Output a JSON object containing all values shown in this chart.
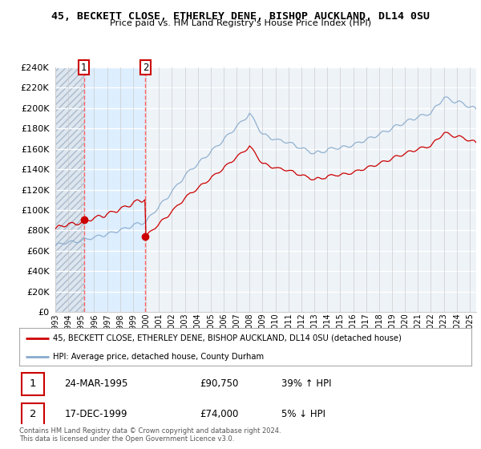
{
  "title": "45, BECKETT CLOSE, ETHERLEY DENE, BISHOP AUCKLAND, DL14 0SU",
  "subtitle": "Price paid vs. HM Land Registry's House Price Index (HPI)",
  "legend_line1": "45, BECKETT CLOSE, ETHERLEY DENE, BISHOP AUCKLAND, DL14 0SU (detached house)",
  "legend_line2": "HPI: Average price, detached house, County Durham",
  "transactions": [
    {
      "label": "1",
      "date": "24-MAR-1995",
      "price": 90750,
      "price_str": "£90,750",
      "pct": "39%",
      "dir": "↑",
      "year": 1995.21
    },
    {
      "label": "2",
      "date": "17-DEC-1999",
      "price": 74000,
      "price_str": "£74,000",
      "pct": "5%",
      "dir": "↓",
      "year": 1999.96
    }
  ],
  "footnote1": "Contains HM Land Registry data © Crown copyright and database right 2024.",
  "footnote2": "This data is licensed under the Open Government Licence v3.0.",
  "ylim": [
    0,
    240000
  ],
  "yticks": [
    0,
    20000,
    40000,
    60000,
    80000,
    100000,
    120000,
    140000,
    160000,
    180000,
    200000,
    220000,
    240000
  ],
  "xmin": 1993.0,
  "xmax": 2025.5,
  "red_line_color": "#cc0000",
  "blue_line_color": "#88aacc",
  "bg_color": "#e8f0f8",
  "hatch_bg": "#d0dce8",
  "grid_color": "#cccccc",
  "plot_bg": "#f0f4f8"
}
